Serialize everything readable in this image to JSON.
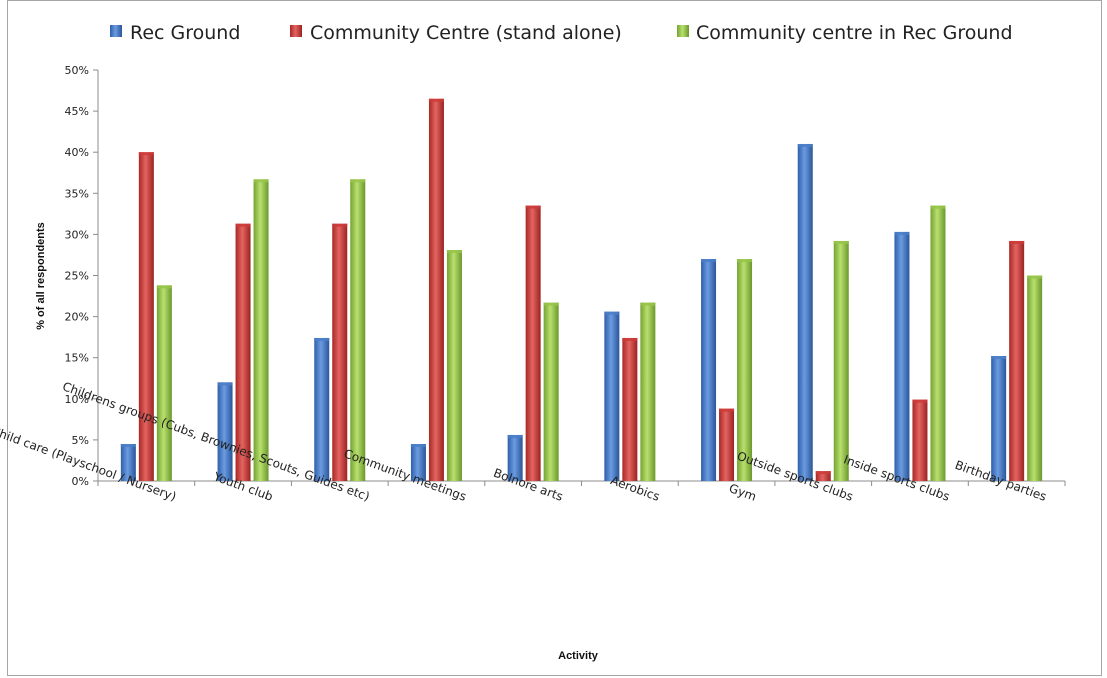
{
  "chart_data": {
    "type": "bar",
    "title": "",
    "xlabel": "Activity",
    "ylabel": "% of all respondents",
    "ylim": [
      0,
      50
    ],
    "y_ticks": [
      "0%",
      "5%",
      "10%",
      "15%",
      "20%",
      "25%",
      "30%",
      "35%",
      "40%",
      "45%",
      "50%"
    ],
    "grid": false,
    "legend_position": "top",
    "categories": [
      "Child care (Playschool / Nursery)",
      "Youth club",
      "Childrens groups (Cubs, Brownies, Scouts, Guides etc)",
      "Community meetings",
      "Bolnore arts",
      "Aerobics",
      "Gym",
      "Outside sports clubs",
      "Inside sports clubs",
      "Birthday parties"
    ],
    "series": [
      {
        "name": "Rec Ground",
        "color": "#4a7ec8",
        "values": [
          4.5,
          12,
          17.4,
          4.5,
          5.6,
          20.6,
          27,
          41,
          30.3,
          15.2
        ]
      },
      {
        "name": "Community Centre (stand alone)",
        "color": "#cc3b38",
        "values": [
          40,
          31.3,
          31.3,
          46.5,
          33.5,
          17.4,
          8.8,
          1.2,
          9.9,
          29.2
        ]
      },
      {
        "name": "Community centre in Rec Ground",
        "color": "#96c44a",
        "values": [
          23.8,
          36.7,
          36.7,
          28.1,
          21.7,
          21.7,
          27,
          29.2,
          33.5,
          25
        ]
      }
    ]
  }
}
